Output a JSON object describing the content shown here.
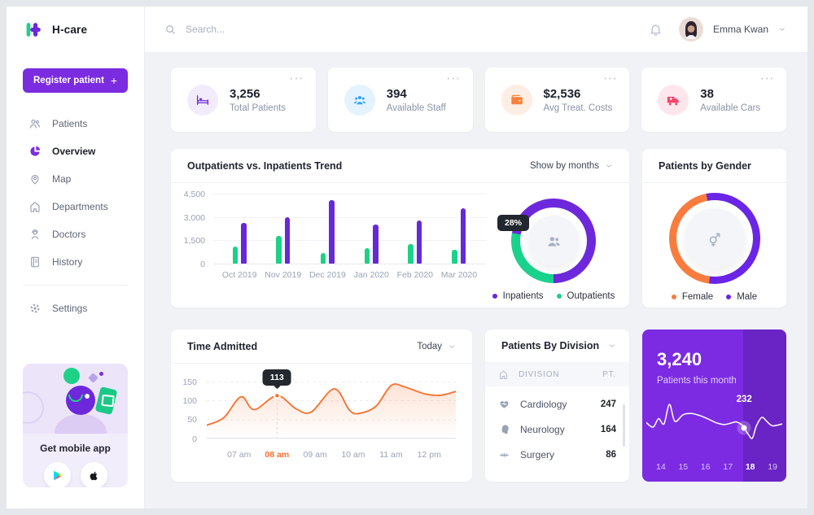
{
  "brand": {
    "name": "H-care"
  },
  "header": {
    "search_placeholder": "Search...",
    "user_name": "Emma Kwan"
  },
  "sidebar": {
    "register_label": "Register patient",
    "register_plus": "+",
    "items": [
      {
        "label": "Patients",
        "icon": "patients-icon",
        "active": false
      },
      {
        "label": "Overview",
        "icon": "overview-icon",
        "active": true
      },
      {
        "label": "Map",
        "icon": "map-pin-icon",
        "active": false
      },
      {
        "label": "Departments",
        "icon": "departments-icon",
        "active": false
      },
      {
        "label": "Doctors",
        "icon": "doctors-icon",
        "active": false
      },
      {
        "label": "History",
        "icon": "history-icon",
        "active": false
      }
    ],
    "settings_label": "Settings",
    "mobile_card": {
      "title": "Get mobile app"
    }
  },
  "stats": [
    {
      "value": "3,256",
      "label": "Total Patients",
      "icon": "bed-icon",
      "color": "#6f2bd9",
      "bg": "#f2ebfc",
      "menu": "···"
    },
    {
      "value": "394",
      "label": "Available Staff",
      "icon": "staff-icon",
      "color": "#30a3f5",
      "bg": "#e4f3fd",
      "menu": "···"
    },
    {
      "value": "$2,536",
      "label": "Avg Treat. Costs",
      "icon": "wallet-icon",
      "color": "#f8813c",
      "bg": "#fdeee3",
      "menu": "···"
    },
    {
      "value": "38",
      "label": "Available Cars",
      "icon": "ambulance-icon",
      "color": "#f4456e",
      "bg": "#fde7ed",
      "menu": "···"
    }
  ],
  "trend_card": {
    "title": "Outpatients vs. Inpatients Trend",
    "filter_label": "Show by months"
  },
  "gender_card": {
    "title": "Patients by Gender"
  },
  "time_card": {
    "title": "Time Admitted",
    "filter_label": "Today"
  },
  "division_card": {
    "title": "Patients By Division",
    "columns": [
      "DIVISION",
      "PT."
    ],
    "rows": [
      {
        "division": "Cardiology",
        "pt": "247",
        "icon": "cardiology-icon"
      },
      {
        "division": "Neurology",
        "pt": "164",
        "icon": "neurology-icon"
      },
      {
        "division": "Surgery",
        "pt": "86",
        "icon": "surgery-icon"
      }
    ]
  },
  "month_card": {
    "value": "3,240",
    "label": "Patients this month",
    "point_label": "232",
    "x_labels": [
      "14",
      "15",
      "16",
      "17",
      "18",
      "19"
    ],
    "active_label": "18"
  },
  "chart_data": [
    {
      "id": "trend_bars",
      "type": "bar",
      "title": "Outpatients vs. Inpatients Trend",
      "categories": [
        "Oct 2019",
        "Nov 2019",
        "Dec 2019",
        "Jan 2020",
        "Feb 2020",
        "Mar 2020"
      ],
      "series": [
        {
          "name": "Outpatients",
          "color": "#1bd286",
          "values": [
            1100,
            1800,
            700,
            1000,
            1250,
            900
          ]
        },
        {
          "name": "Inpatients",
          "color": "#6529d9",
          "values": [
            2600,
            3000,
            4100,
            2500,
            2800,
            3550
          ]
        }
      ],
      "y_ticks": [
        "4,500",
        "3,000",
        "1,500",
        "0"
      ],
      "ylim": [
        0,
        4500
      ],
      "legend": [
        "Inpatients",
        "Outpatients"
      ],
      "legend_colors": [
        "#6529d9",
        "#1bd286"
      ],
      "grid": "dotted-horizontal"
    },
    {
      "id": "trend_donut",
      "type": "pie",
      "values": [
        {
          "name": "Inpatients",
          "value": 72,
          "color": "#6d28dc"
        },
        {
          "name": "Outpatients",
          "value": 28,
          "color": "#19d28c"
        }
      ],
      "highlight_label": "28%"
    },
    {
      "id": "gender_donut",
      "type": "pie",
      "values": [
        {
          "name": "Female",
          "value": 45,
          "color": "#f97c3f"
        },
        {
          "name": "Male",
          "value": 55,
          "color": "#6a25e6"
        }
      ],
      "legend": [
        "Female",
        "Male"
      ],
      "legend_position": "bottom"
    },
    {
      "id": "time_admitted",
      "type": "line",
      "color": "#f9702e",
      "x_labels": [
        "07 am",
        "08 am",
        "09 am",
        "10 am",
        "11 am",
        "12 pm"
      ],
      "active_x": "08 am",
      "y_ticks": [
        "150",
        "100",
        "50",
        "0"
      ],
      "ylim": [
        0,
        150
      ],
      "x_domain": [
        6.15,
        12.7
      ],
      "points": [
        [
          6.15,
          35
        ],
        [
          6.6,
          55
        ],
        [
          7.05,
          110
        ],
        [
          7.4,
          76
        ],
        [
          8,
          113
        ],
        [
          8.5,
          78
        ],
        [
          8.9,
          70
        ],
        [
          9.5,
          131
        ],
        [
          9.9,
          75
        ],
        [
          10.15,
          66
        ],
        [
          10.6,
          85
        ],
        [
          11,
          140
        ],
        [
          11.35,
          136
        ],
        [
          11.9,
          117
        ],
        [
          12.3,
          114
        ],
        [
          12.7,
          124
        ]
      ],
      "highlight_point": [
        8,
        113
      ],
      "tooltip": "113",
      "grid": "dashed-horizontal"
    },
    {
      "id": "month_spark",
      "type": "line",
      "color": "#ffffff",
      "points": [
        [
          0,
          38
        ],
        [
          5,
          45
        ],
        [
          9,
          32
        ],
        [
          13,
          40
        ],
        [
          17,
          10
        ],
        [
          21,
          36
        ],
        [
          27,
          26
        ],
        [
          33,
          24
        ],
        [
          39,
          27
        ],
        [
          45,
          32
        ],
        [
          51,
          38
        ],
        [
          57,
          41
        ],
        [
          62,
          39
        ],
        [
          66,
          37
        ],
        [
          70,
          41
        ],
        [
          72,
          46
        ],
        [
          75,
          56
        ],
        [
          78,
          62
        ],
        [
          81,
          43
        ],
        [
          85,
          30
        ],
        [
          89,
          37
        ],
        [
          93,
          43
        ],
        [
          100,
          40
        ]
      ],
      "highlight_index": 15,
      "point_label": "232"
    }
  ]
}
